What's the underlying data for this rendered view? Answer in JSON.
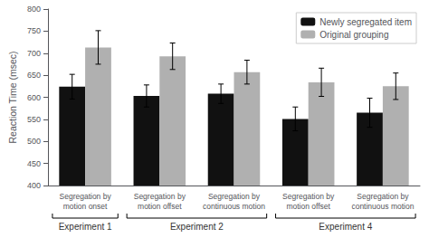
{
  "chart_data": {
    "type": "bar",
    "categories": [
      "Segregation by\nmotion onset",
      "Segregation by\nmotion offset",
      "Segregation by\ncontinuous motion",
      "Segregation by\nmotion offset",
      "Segregation by\ncontinuous motion"
    ],
    "category_groups": [
      "Experiment 1",
      "Experiment 2",
      "Experiment 2",
      "Experiment 4",
      "Experiment 4"
    ],
    "series": [
      {
        "name": "Newly segregated item",
        "color": "#111111",
        "values": [
          624,
          603,
          608,
          551,
          565
        ],
        "errors": [
          28,
          25,
          22,
          27,
          33
        ]
      },
      {
        "name": "Original grouping",
        "color": "#b0b0b0",
        "values": [
          713,
          693,
          657,
          634,
          625
        ],
        "errors": [
          38,
          30,
          27,
          32,
          30
        ]
      }
    ],
    "ylabel": "Reaction Time (msec)",
    "ylim": [
      400,
      800
    ],
    "yticks": [
      400,
      450,
      500,
      550,
      600,
      650,
      700,
      750,
      800
    ],
    "grid": false,
    "legend": "upper right"
  }
}
